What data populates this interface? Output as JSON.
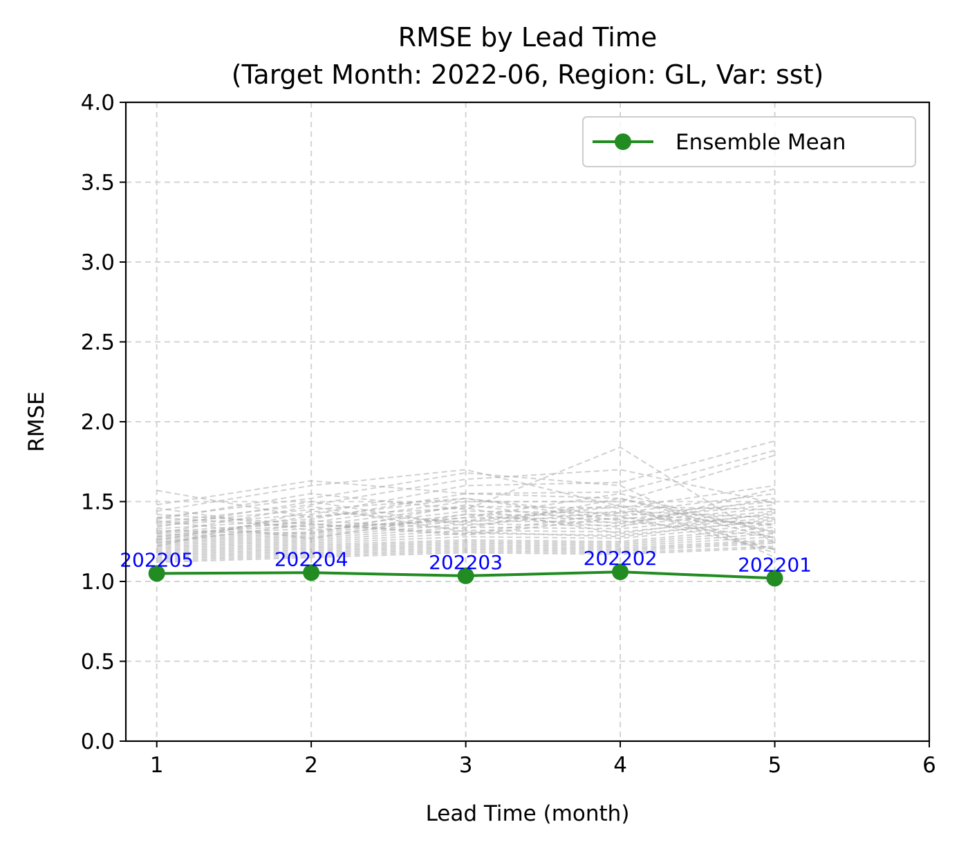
{
  "chart_data": {
    "type": "line",
    "title_line1": "RMSE by Lead Time",
    "title_line2": "(Target Month: 2022-06, Region: GL, Var: sst)",
    "xlabel": "Lead Time (month)",
    "ylabel": "RMSE",
    "xlim": [
      0.8,
      6
    ],
    "ylim": [
      0,
      4
    ],
    "xticks": [
      1,
      2,
      3,
      4,
      5,
      6
    ],
    "yticks": [
      0.0,
      0.5,
      1.0,
      1.5,
      2.0,
      2.5,
      3.0,
      3.5,
      4.0
    ],
    "grid": true,
    "legend_position": "upper-right",
    "series": [
      {
        "name": "Ensemble Mean",
        "color": "#228b22",
        "x": [
          1,
          2,
          3,
          4,
          5
        ],
        "values": [
          1.05,
          1.055,
          1.035,
          1.06,
          1.02
        ],
        "point_labels": [
          "202205",
          "202204",
          "202203",
          "202202",
          "202201"
        ]
      }
    ],
    "members": {
      "color": "#a9a9a9",
      "x": [
        1,
        2,
        3,
        4,
        5
      ],
      "values": [
        [
          1.57,
          1.4,
          1.52,
          1.41,
          1.2
        ],
        [
          1.48,
          1.63,
          1.55,
          1.52,
          1.31
        ],
        [
          1.44,
          1.6,
          1.7,
          1.47,
          1.45
        ],
        [
          1.4,
          1.52,
          1.68,
          1.6,
          1.15
        ],
        [
          1.39,
          1.55,
          1.45,
          1.84,
          1.24
        ],
        [
          1.37,
          1.48,
          1.64,
          1.7,
          1.49
        ],
        [
          1.35,
          1.42,
          1.6,
          1.62,
          1.88
        ],
        [
          1.33,
          1.39,
          1.55,
          1.56,
          1.82
        ],
        [
          1.31,
          1.37,
          1.5,
          1.5,
          1.79
        ],
        [
          1.3,
          1.35,
          1.47,
          1.46,
          1.6
        ],
        [
          1.29,
          1.33,
          1.44,
          1.43,
          1.55
        ],
        [
          1.28,
          1.31,
          1.42,
          1.41,
          1.5
        ],
        [
          1.27,
          1.3,
          1.4,
          1.39,
          1.48
        ],
        [
          1.26,
          1.29,
          1.38,
          1.37,
          1.46
        ],
        [
          1.25,
          1.28,
          1.36,
          1.35,
          1.44
        ],
        [
          1.24,
          1.27,
          1.34,
          1.33,
          1.42
        ],
        [
          1.23,
          1.26,
          1.32,
          1.31,
          1.4
        ],
        [
          1.22,
          1.25,
          1.3,
          1.29,
          1.38
        ],
        [
          1.21,
          1.24,
          1.28,
          1.27,
          1.36
        ],
        [
          1.2,
          1.23,
          1.26,
          1.25,
          1.34
        ],
        [
          1.19,
          1.22,
          1.25,
          1.24,
          1.32
        ],
        [
          1.18,
          1.21,
          1.24,
          1.23,
          1.3
        ],
        [
          1.17,
          1.2,
          1.23,
          1.22,
          1.28
        ],
        [
          1.16,
          1.19,
          1.22,
          1.21,
          1.26
        ],
        [
          1.15,
          1.18,
          1.21,
          1.2,
          1.25
        ],
        [
          1.14,
          1.17,
          1.2,
          1.19,
          1.24
        ],
        [
          1.13,
          1.16,
          1.19,
          1.18,
          1.22
        ],
        [
          1.12,
          1.15,
          1.18,
          1.17,
          1.21
        ],
        [
          1.42,
          1.36,
          1.3,
          1.43,
          1.35
        ],
        [
          1.4,
          1.34,
          1.38,
          1.48,
          1.2
        ],
        [
          1.36,
          1.45,
          1.52,
          1.38,
          1.28
        ],
        [
          1.34,
          1.5,
          1.35,
          1.44,
          1.4
        ],
        [
          1.32,
          1.3,
          1.48,
          1.36,
          1.52
        ],
        [
          1.28,
          1.38,
          1.33,
          1.52,
          1.27
        ],
        [
          1.26,
          1.41,
          1.46,
          1.3,
          1.43
        ],
        [
          1.24,
          1.36,
          1.29,
          1.4,
          1.36
        ],
        [
          1.38,
          1.27,
          1.42,
          1.34,
          1.58
        ],
        [
          1.22,
          1.44,
          1.37,
          1.47,
          1.18
        ],
        [
          1.3,
          1.47,
          1.31,
          1.28,
          1.39
        ],
        [
          1.46,
          1.32,
          1.4,
          1.55,
          1.3
        ]
      ]
    }
  }
}
